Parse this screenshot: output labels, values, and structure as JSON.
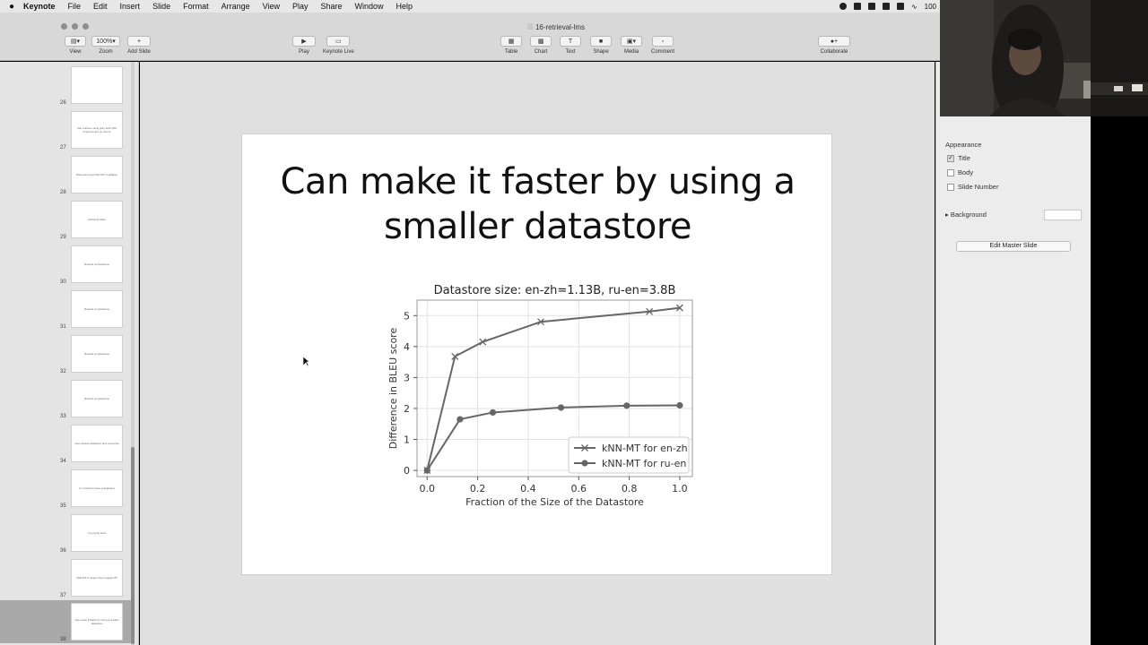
{
  "menubar": {
    "app_name": "Keynote",
    "items": [
      "File",
      "Edit",
      "Insert",
      "Slide",
      "Format",
      "Arrange",
      "View",
      "Play",
      "Share",
      "Window",
      "Help"
    ],
    "battery": "100"
  },
  "window": {
    "document_title": "16-retrieval-lms"
  },
  "toolbar": {
    "view_label": "View",
    "zoom_value": "100%",
    "zoom_label": "Zoom",
    "add_slide_label": "Add Slide",
    "play_label": "Play",
    "keynote_live_label": "Keynote Live",
    "table_label": "Table",
    "chart_label": "Chart",
    "text_label": "Text",
    "shape_label": "Shape",
    "media_label": "Media",
    "comment_label": "Comment",
    "collaborate_label": "Collaborate"
  },
  "navigator": {
    "slides": [
      {
        "num": "26",
        "text": ""
      },
      {
        "num": "27",
        "text": "Can retrieve using grep kind 10% improvement on recent"
      },
      {
        "num": "28",
        "text": "Retrieval using kNN-MT in addition"
      },
      {
        "num": "29",
        "text": "Retrieval table"
      },
      {
        "num": "30",
        "text": "Results comparisons"
      },
      {
        "num": "31",
        "text": "Results comparisons"
      },
      {
        "num": "32",
        "text": "Results comparisons"
      },
      {
        "num": "33",
        "text": "Results comparisons"
      },
      {
        "num": "34",
        "text": "Can retrieve datastore and memorize"
      },
      {
        "num": "35",
        "text": "Is it useful to have a datastore"
      },
      {
        "num": "36",
        "text": "It is pretty slow"
      },
      {
        "num": "37",
        "text": "kNN-MT is slower than regular MT"
      },
      {
        "num": "38",
        "text": "Can make it faster by using a smaller datastore"
      }
    ]
  },
  "slide": {
    "title_line1": "Can make it faster by using a",
    "title_line2": "smaller datastore"
  },
  "chart_data": {
    "type": "line",
    "title": "Datastore size: en-zh=1.13B, ru-en=3.8B",
    "xlabel": "Fraction of the Size of the Datastore",
    "ylabel": "Difference in BLEU score",
    "xlim": [
      -0.04,
      1.05
    ],
    "ylim": [
      -0.2,
      5.5
    ],
    "xticks": [
      0.0,
      0.2,
      0.4,
      0.6,
      0.8,
      1.0
    ],
    "xtick_labels": [
      "0.0",
      "0.2",
      "0.4",
      "0.6",
      "0.8",
      "1.0"
    ],
    "yticks": [
      0,
      1,
      2,
      3,
      4,
      5
    ],
    "ytick_labels": [
      "0",
      "1",
      "2",
      "3",
      "4",
      "5"
    ],
    "grid": true,
    "legend_position": "lower-right",
    "series": [
      {
        "name": "kNN-MT for en-zh",
        "marker": "x",
        "color": "#666666",
        "x": [
          0.0,
          0.11,
          0.22,
          0.45,
          0.88,
          1.0
        ],
        "y": [
          0.0,
          3.68,
          4.15,
          4.8,
          5.13,
          5.25
        ]
      },
      {
        "name": "kNN-MT for ru-en",
        "marker": "o",
        "color": "#666666",
        "x": [
          0.0,
          0.13,
          0.26,
          0.53,
          0.79,
          1.0
        ],
        "y": [
          0.0,
          1.65,
          1.87,
          2.03,
          2.09,
          2.1
        ]
      }
    ]
  },
  "right_panel": {
    "appearance_heading": "Appearance",
    "title_option": "Title",
    "body_option": "Body",
    "slide_number_option": "Slide Number",
    "background_label": "Background",
    "edit_master_label": "Edit Master Slide"
  }
}
